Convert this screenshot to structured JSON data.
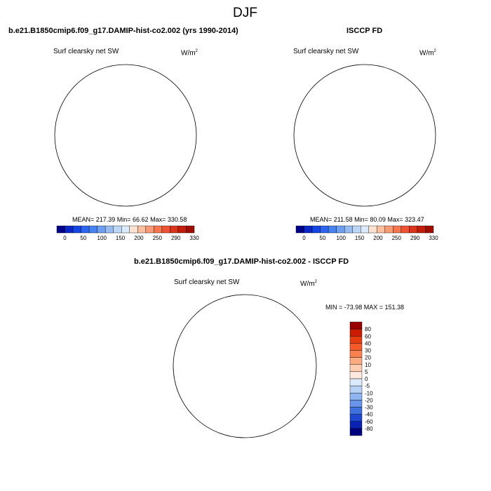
{
  "figure_title": "DJF",
  "panels": [
    {
      "header": "b.e21.B1850cmip6.f09_g17.DAMIP-hist-co2.002 (yrs 1990-2014)",
      "variable": "Surf clearsky net SW",
      "units": "W/m",
      "units_exp": "2",
      "stats": "MEAN= 217.39  Min=  66.62  Max= 330.58"
    },
    {
      "header": "ISCCP FD",
      "variable": "Surf clearsky net SW",
      "units": "W/m",
      "units_exp": "2",
      "stats": "MEAN= 211.58  Min=  80.09  Max= 323.47"
    },
    {
      "header": "b.e21.B1850cmip6.f09_g17.DAMIP-hist-co2.002 - ISCCP FD",
      "variable": "Surf clearsky net SW",
      "units": "W/m",
      "units_exp": "2",
      "stats": "MIN = -73.98 MAX = 151.38"
    }
  ],
  "colorbar_abs": {
    "labels": [
      "0",
      "50",
      "100",
      "150",
      "200",
      "250",
      "290",
      "330"
    ],
    "colors": [
      "#00008b",
      "#0a28c8",
      "#1446e6",
      "#2d64f0",
      "#4682f0",
      "#6e9ef0",
      "#96bcf2",
      "#bcd6f6",
      "#dcebfa",
      "#fde2d2",
      "#fcc0a0",
      "#f99b74",
      "#f6764f",
      "#ef5232",
      "#dc3418",
      "#c21e0a",
      "#9e0d00"
    ]
  },
  "colorbar_diff": {
    "labels": [
      "80",
      "60",
      "40",
      "30",
      "20",
      "10",
      "5",
      "0",
      "-5",
      "-10",
      "-20",
      "-30",
      "-40",
      "-60",
      "-80"
    ],
    "colors": [
      "#990000",
      "#cc1a00",
      "#e83c10",
      "#f55a28",
      "#f98250",
      "#fbab80",
      "#fdcdb2",
      "#fde9de",
      "#dbe9fa",
      "#b7d1f6",
      "#8fb5f0",
      "#6895ea",
      "#3f70e0",
      "#1f48d2",
      "#0a22b4",
      "#000080"
    ]
  }
}
